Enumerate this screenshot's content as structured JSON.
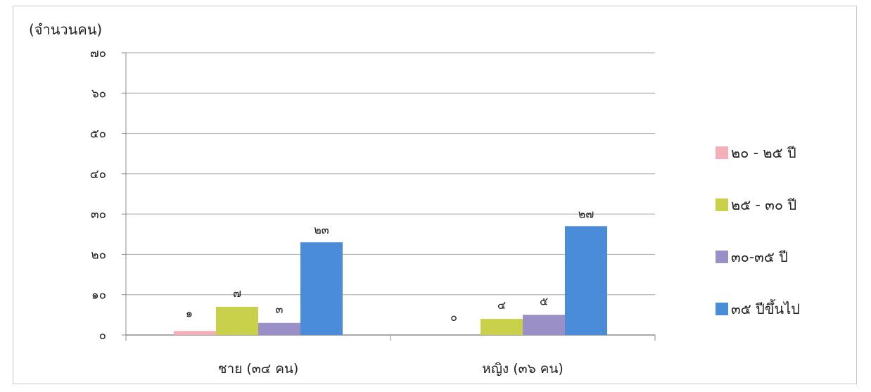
{
  "chart_data": {
    "type": "bar",
    "ylabel": "(จำนวนคน)",
    "xlabel": "",
    "ylim": [
      0,
      70
    ],
    "yticks": [
      0,
      10,
      20,
      30,
      40,
      50,
      60,
      70
    ],
    "ytick_labels": [
      "๐",
      "๑๐",
      "๒๐",
      "๓๐",
      "๔๐",
      "๕๐",
      "๖๐",
      "๗๐"
    ],
    "grid": true,
    "legend_position": "right",
    "categories": [
      "ชาย (๓๔ คน)",
      "หญิง (๓๖ คน)"
    ],
    "series": [
      {
        "name": "๒๐ - ๒๕ ปี",
        "color": "#F4AFB8",
        "values": [
          1,
          0
        ],
        "labels": [
          "๑",
          "๐"
        ]
      },
      {
        "name": "๒๕ - ๓๐ ปี",
        "color": "#C9D14A",
        "values": [
          7,
          4
        ],
        "labels": [
          "๗",
          "๔"
        ]
      },
      {
        "name": "๓๐-๓๕ ปี",
        "color": "#9A8FC6",
        "values": [
          3,
          5
        ],
        "labels": [
          "๓",
          "๕"
        ]
      },
      {
        "name": "๓๕ ปีขึ้นไป",
        "color": "#4A8CD8",
        "values": [
          23,
          27
        ],
        "labels": [
          "๒๓",
          "๒๗"
        ]
      }
    ]
  }
}
